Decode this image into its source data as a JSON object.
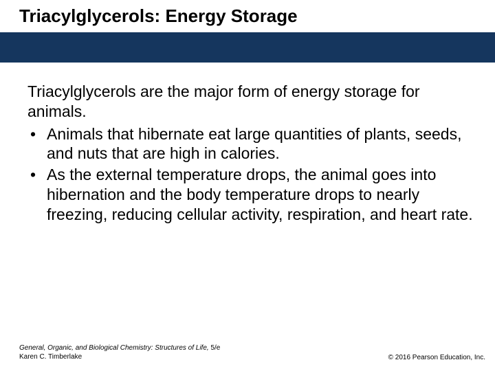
{
  "colors": {
    "band": "#15365e",
    "background": "#ffffff",
    "text": "#000000"
  },
  "title": "Triacylglycerols: Energy Storage",
  "lead": "Triacylglycerols are the major form of energy storage for animals.",
  "bullets": [
    "Animals that hibernate eat large quantities of plants, seeds, and nuts that are high in calories.",
    "As the external temperature drops, the animal goes into hibernation and the body temperature drops to nearly freezing, reducing cellular activity, respiration, and heart rate."
  ],
  "footer": {
    "book": "General, Organic, and Biological Chemistry: Structures of Life,",
    "edition": " 5/e",
    "author": "Karen C. Timberlake",
    "copyright": "© 2016 Pearson Education, Inc."
  }
}
